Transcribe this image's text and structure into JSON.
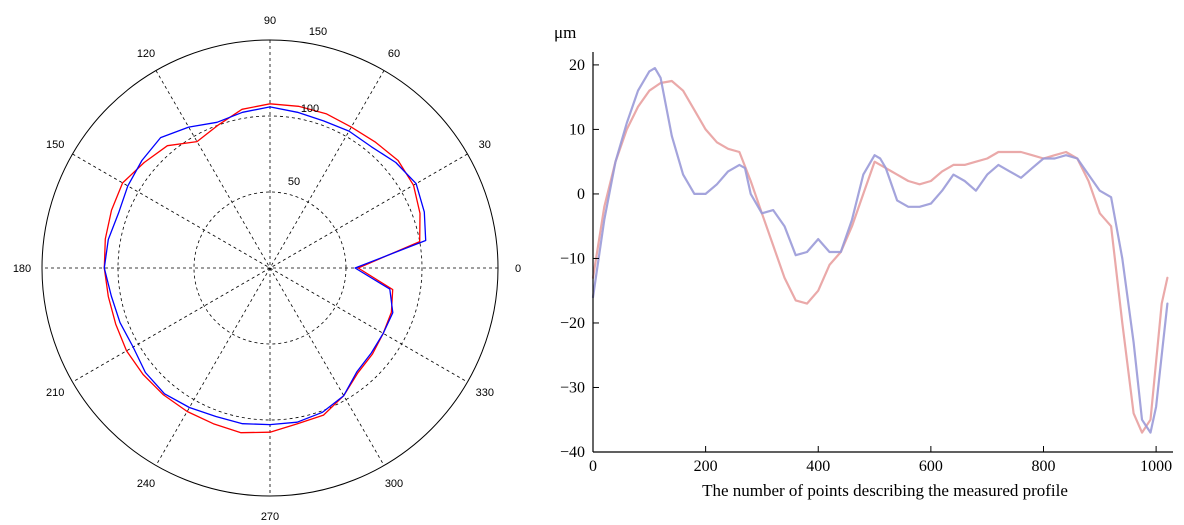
{
  "chart_data": [
    {
      "type": "polar-line",
      "title": "",
      "angle_ticks": [
        "0",
        "30",
        "60",
        "90",
        "120",
        "150",
        "180",
        "210",
        "240",
        "270",
        "300",
        "330"
      ],
      "radial_ticks": [
        "50",
        "100",
        "150"
      ],
      "rlim": [
        0,
        150
      ],
      "grid": true,
      "series": [
        {
          "color": "#ff0000",
          "theta": [
            0,
            10,
            20,
            30,
            40,
            50,
            60,
            70,
            80,
            90,
            100,
            110,
            120,
            130,
            140,
            150,
            160,
            170,
            180,
            190,
            200,
            210,
            220,
            230,
            240,
            250,
            260,
            270,
            280,
            290,
            300,
            310,
            320,
            330,
            340,
            350,
            360
          ],
          "r": [
            58,
            100,
            105,
            109,
            110,
            108,
            107,
            108,
            108,
            108,
            106,
            100,
            96,
            105,
            108,
            112,
            111,
            110,
            109,
            108,
            108,
            109,
            109,
            109,
            109,
            109,
            110,
            108,
            104,
            103,
            97,
            90,
            88,
            86,
            85,
            82,
            58
          ]
        },
        {
          "color": "#0000ff",
          "theta": [
            0,
            10,
            20,
            30,
            40,
            50,
            60,
            70,
            80,
            90,
            100,
            110,
            120,
            130,
            140,
            150,
            160,
            170,
            180,
            190,
            200,
            210,
            220,
            230,
            240,
            250,
            260,
            270,
            280,
            290,
            300,
            310,
            320,
            330,
            340,
            350,
            360
          ],
          "r": [
            56,
            104,
            108,
            111,
            108,
            104,
            104,
            103,
            104,
            106,
            104,
            102,
            107,
            112,
            110,
            108,
            106,
            108,
            109,
            106,
            105,
            104,
            107,
            108,
            106,
            104,
            104,
            103,
            103,
            101,
            97,
            89,
            87,
            86,
            86,
            80,
            56
          ]
        }
      ]
    },
    {
      "type": "line",
      "title": "",
      "xlabel": "The number of points describing the measured profile",
      "ylabel": "μm",
      "xlim": [
        0,
        1030
      ],
      "ylim": [
        -40,
        22
      ],
      "x_ticks": [
        "0",
        "200",
        "400",
        "600",
        "800",
        "1000"
      ],
      "y_ticks": [
        "20",
        "10",
        "0",
        "−10",
        "−20",
        "−30",
        "−40"
      ],
      "series": [
        {
          "color": "#e8a0a0",
          "x": [
            0,
            20,
            40,
            60,
            80,
            100,
            120,
            140,
            160,
            180,
            200,
            220,
            240,
            260,
            280,
            300,
            320,
            340,
            360,
            380,
            400,
            420,
            440,
            460,
            480,
            500,
            520,
            540,
            560,
            580,
            600,
            620,
            640,
            660,
            680,
            700,
            720,
            740,
            760,
            780,
            800,
            820,
            840,
            860,
            880,
            900,
            920,
            940,
            960,
            975,
            990,
            1000,
            1010,
            1020
          ],
          "y": [
            -13,
            -2,
            5,
            10,
            13.5,
            16,
            17.2,
            17.5,
            16,
            13,
            10,
            8,
            7,
            6.5,
            2,
            -3,
            -8,
            -13,
            -16.5,
            -17,
            -15,
            -11,
            -9,
            -5,
            0,
            5,
            4,
            3,
            2,
            1.5,
            2,
            3.5,
            4.5,
            4.5,
            5,
            5.5,
            6.5,
            6.5,
            6.5,
            6,
            5.5,
            6,
            6.5,
            5.5,
            2,
            -3,
            -5,
            -20,
            -34,
            -37,
            -35,
            -26,
            -17,
            -13
          ]
        },
        {
          "color": "#9a9ad8",
          "x": [
            0,
            20,
            40,
            60,
            80,
            100,
            110,
            120,
            140,
            160,
            180,
            200,
            220,
            240,
            260,
            270,
            280,
            300,
            320,
            340,
            360,
            380,
            400,
            420,
            440,
            460,
            480,
            500,
            510,
            520,
            540,
            560,
            580,
            600,
            620,
            640,
            660,
            680,
            700,
            720,
            740,
            760,
            780,
            800,
            820,
            840,
            860,
            880,
            900,
            920,
            940,
            960,
            975,
            990,
            1000,
            1010,
            1020
          ],
          "y": [
            -16,
            -4,
            5,
            11,
            16,
            19,
            19.5,
            18,
            9,
            3,
            0,
            0,
            1.5,
            3.5,
            4.5,
            4,
            0,
            -3,
            -2.5,
            -5,
            -9.5,
            -9,
            -7,
            -9,
            -9,
            -4,
            3,
            6,
            5.5,
            4,
            -1,
            -2,
            -2,
            -1.5,
            0.5,
            3,
            2,
            0.5,
            3,
            4.5,
            3.5,
            2.5,
            4,
            5.5,
            5.5,
            6,
            5.5,
            3,
            0.5,
            -0.5,
            -10,
            -23,
            -35,
            -37,
            -33,
            -25,
            -17
          ]
        }
      ]
    }
  ]
}
